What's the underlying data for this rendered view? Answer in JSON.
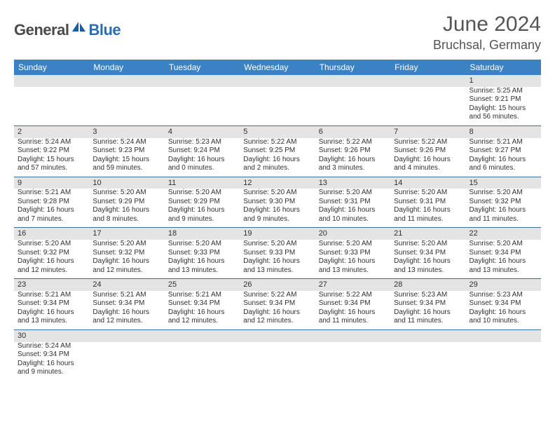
{
  "logo": {
    "text1": "General",
    "text2": "Blue",
    "color1": "#4a4a4a",
    "color2": "#2a6db0",
    "shape_color": "#1d5ca0"
  },
  "header": {
    "title": "June 2024",
    "location": "Bruchsal, Germany"
  },
  "colors": {
    "header_bg": "#3b82c4",
    "header_text": "#ffffff",
    "daynum_bg": "#e4e4e4",
    "grid_line": "#3b6fa0",
    "body_text": "#303030"
  },
  "weekdays": [
    "Sunday",
    "Monday",
    "Tuesday",
    "Wednesday",
    "Thursday",
    "Friday",
    "Saturday"
  ],
  "weeks": [
    [
      null,
      null,
      null,
      null,
      null,
      null,
      {
        "n": "1",
        "sr": "Sunrise: 5:25 AM",
        "ss": "Sunset: 9:21 PM",
        "dl": "Daylight: 15 hours and 56 minutes."
      }
    ],
    [
      {
        "n": "2",
        "sr": "Sunrise: 5:24 AM",
        "ss": "Sunset: 9:22 PM",
        "dl": "Daylight: 15 hours and 57 minutes."
      },
      {
        "n": "3",
        "sr": "Sunrise: 5:24 AM",
        "ss": "Sunset: 9:23 PM",
        "dl": "Daylight: 15 hours and 59 minutes."
      },
      {
        "n": "4",
        "sr": "Sunrise: 5:23 AM",
        "ss": "Sunset: 9:24 PM",
        "dl": "Daylight: 16 hours and 0 minutes."
      },
      {
        "n": "5",
        "sr": "Sunrise: 5:22 AM",
        "ss": "Sunset: 9:25 PM",
        "dl": "Daylight: 16 hours and 2 minutes."
      },
      {
        "n": "6",
        "sr": "Sunrise: 5:22 AM",
        "ss": "Sunset: 9:26 PM",
        "dl": "Daylight: 16 hours and 3 minutes."
      },
      {
        "n": "7",
        "sr": "Sunrise: 5:22 AM",
        "ss": "Sunset: 9:26 PM",
        "dl": "Daylight: 16 hours and 4 minutes."
      },
      {
        "n": "8",
        "sr": "Sunrise: 5:21 AM",
        "ss": "Sunset: 9:27 PM",
        "dl": "Daylight: 16 hours and 6 minutes."
      }
    ],
    [
      {
        "n": "9",
        "sr": "Sunrise: 5:21 AM",
        "ss": "Sunset: 9:28 PM",
        "dl": "Daylight: 16 hours and 7 minutes."
      },
      {
        "n": "10",
        "sr": "Sunrise: 5:20 AM",
        "ss": "Sunset: 9:29 PM",
        "dl": "Daylight: 16 hours and 8 minutes."
      },
      {
        "n": "11",
        "sr": "Sunrise: 5:20 AM",
        "ss": "Sunset: 9:29 PM",
        "dl": "Daylight: 16 hours and 9 minutes."
      },
      {
        "n": "12",
        "sr": "Sunrise: 5:20 AM",
        "ss": "Sunset: 9:30 PM",
        "dl": "Daylight: 16 hours and 9 minutes."
      },
      {
        "n": "13",
        "sr": "Sunrise: 5:20 AM",
        "ss": "Sunset: 9:31 PM",
        "dl": "Daylight: 16 hours and 10 minutes."
      },
      {
        "n": "14",
        "sr": "Sunrise: 5:20 AM",
        "ss": "Sunset: 9:31 PM",
        "dl": "Daylight: 16 hours and 11 minutes."
      },
      {
        "n": "15",
        "sr": "Sunrise: 5:20 AM",
        "ss": "Sunset: 9:32 PM",
        "dl": "Daylight: 16 hours and 11 minutes."
      }
    ],
    [
      {
        "n": "16",
        "sr": "Sunrise: 5:20 AM",
        "ss": "Sunset: 9:32 PM",
        "dl": "Daylight: 16 hours and 12 minutes."
      },
      {
        "n": "17",
        "sr": "Sunrise: 5:20 AM",
        "ss": "Sunset: 9:32 PM",
        "dl": "Daylight: 16 hours and 12 minutes."
      },
      {
        "n": "18",
        "sr": "Sunrise: 5:20 AM",
        "ss": "Sunset: 9:33 PM",
        "dl": "Daylight: 16 hours and 13 minutes."
      },
      {
        "n": "19",
        "sr": "Sunrise: 5:20 AM",
        "ss": "Sunset: 9:33 PM",
        "dl": "Daylight: 16 hours and 13 minutes."
      },
      {
        "n": "20",
        "sr": "Sunrise: 5:20 AM",
        "ss": "Sunset: 9:33 PM",
        "dl": "Daylight: 16 hours and 13 minutes."
      },
      {
        "n": "21",
        "sr": "Sunrise: 5:20 AM",
        "ss": "Sunset: 9:34 PM",
        "dl": "Daylight: 16 hours and 13 minutes."
      },
      {
        "n": "22",
        "sr": "Sunrise: 5:20 AM",
        "ss": "Sunset: 9:34 PM",
        "dl": "Daylight: 16 hours and 13 minutes."
      }
    ],
    [
      {
        "n": "23",
        "sr": "Sunrise: 5:21 AM",
        "ss": "Sunset: 9:34 PM",
        "dl": "Daylight: 16 hours and 13 minutes."
      },
      {
        "n": "24",
        "sr": "Sunrise: 5:21 AM",
        "ss": "Sunset: 9:34 PM",
        "dl": "Daylight: 16 hours and 12 minutes."
      },
      {
        "n": "25",
        "sr": "Sunrise: 5:21 AM",
        "ss": "Sunset: 9:34 PM",
        "dl": "Daylight: 16 hours and 12 minutes."
      },
      {
        "n": "26",
        "sr": "Sunrise: 5:22 AM",
        "ss": "Sunset: 9:34 PM",
        "dl": "Daylight: 16 hours and 12 minutes."
      },
      {
        "n": "27",
        "sr": "Sunrise: 5:22 AM",
        "ss": "Sunset: 9:34 PM",
        "dl": "Daylight: 16 hours and 11 minutes."
      },
      {
        "n": "28",
        "sr": "Sunrise: 5:23 AM",
        "ss": "Sunset: 9:34 PM",
        "dl": "Daylight: 16 hours and 11 minutes."
      },
      {
        "n": "29",
        "sr": "Sunrise: 5:23 AM",
        "ss": "Sunset: 9:34 PM",
        "dl": "Daylight: 16 hours and 10 minutes."
      }
    ],
    [
      {
        "n": "30",
        "sr": "Sunrise: 5:24 AM",
        "ss": "Sunset: 9:34 PM",
        "dl": "Daylight: 16 hours and 9 minutes."
      },
      null,
      null,
      null,
      null,
      null,
      null
    ]
  ]
}
